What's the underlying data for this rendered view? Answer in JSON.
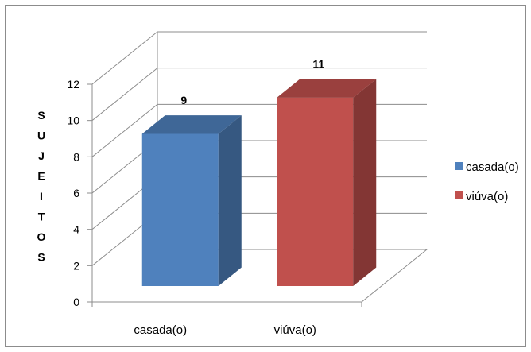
{
  "chart_data": {
    "type": "bar",
    "three_d": true,
    "categories": [
      "casada(o)",
      "viúva(o)"
    ],
    "values": [
      9,
      11
    ],
    "series": [
      {
        "name": "casada(o)",
        "values": [
          9,
          null
        ],
        "color": "#4f81bd"
      },
      {
        "name": "viúva(o)",
        "values": [
          null,
          11
        ],
        "color": "#c0504d"
      }
    ],
    "ylabel": "SUJEITOS",
    "ylim": [
      0,
      12
    ],
    "yticks": [
      0,
      2,
      4,
      6,
      8,
      10,
      12
    ],
    "grid": true,
    "legend": "right",
    "title": "",
    "xlabel": ""
  }
}
